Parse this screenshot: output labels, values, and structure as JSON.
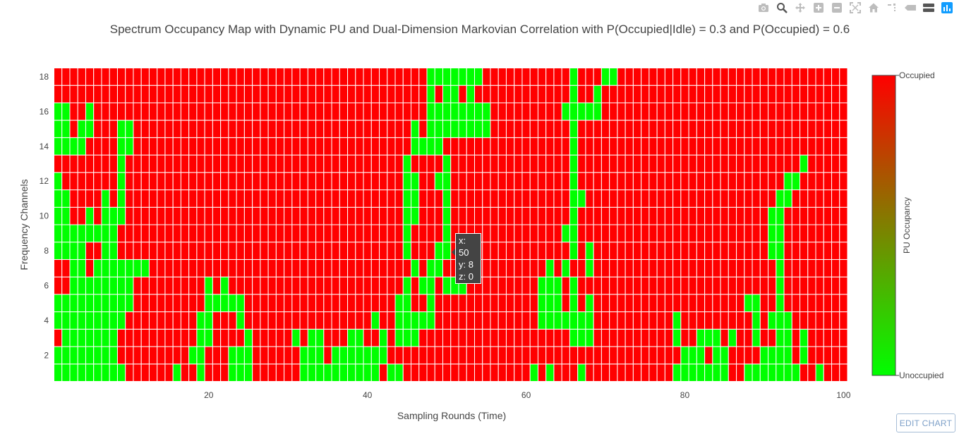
{
  "modebar": {
    "icons": [
      "camera-icon",
      "zoom-icon",
      "pan-icon",
      "zoom-in-icon",
      "zoom-out-icon",
      "autoscale-icon",
      "home-icon",
      "spike-lines-icon",
      "hover-closest-icon",
      "hover-compare-icon",
      "plotly-logo-icon"
    ]
  },
  "edit_chart_label": "EDIT CHART",
  "tooltip": {
    "x_line": "x: 50",
    "y_line": "y: 8",
    "z_line": "z: 0"
  },
  "colors": {
    "occupied": "#ff0000",
    "unoccupied": "#00ff00",
    "grid": "#ffffff",
    "text": "#444444"
  },
  "chart_data": {
    "type": "heatmap",
    "title": "Spectrum Occupancy Map with Dynamic PU and Dual-Dimension Markovian Correlation with P(Occupied|Idle) = 0.3 and P(Occupied) = 0.6",
    "xlabel": "Sampling Rounds (Time)",
    "ylabel": "Frequency Channels",
    "xlim": [
      1,
      100
    ],
    "ylim": [
      1,
      18
    ],
    "x_ticks": [
      20,
      40,
      60,
      80,
      100
    ],
    "y_ticks": [
      2,
      4,
      6,
      8,
      10,
      12,
      14,
      16,
      18
    ],
    "colorbar": {
      "title": "PU Occupancy",
      "max_label": "Occupied",
      "min_label": "Unoccupied"
    },
    "legend": "colorbar-right",
    "z_encoding": "1 = occupied (red), 0 = unoccupied (green)",
    "idle_runs_by_channel": {
      "1": [
        [
          1,
          9
        ],
        [
          16,
          16
        ],
        [
          19,
          19
        ],
        [
          23,
          25
        ],
        [
          32,
          41
        ],
        [
          43,
          44
        ],
        [
          61,
          61
        ],
        [
          63,
          63
        ],
        [
          67,
          67
        ],
        [
          79,
          85
        ],
        [
          88,
          94
        ],
        [
          97,
          97
        ]
      ],
      "2": [
        [
          1,
          8
        ],
        [
          18,
          19
        ],
        [
          23,
          25
        ],
        [
          32,
          34
        ],
        [
          36,
          42
        ],
        [
          80,
          82
        ],
        [
          84,
          85
        ],
        [
          90,
          93
        ],
        [
          95,
          95
        ]
      ],
      "3": [
        [
          2,
          8
        ],
        [
          19,
          20
        ],
        [
          25,
          25
        ],
        [
          31,
          31
        ],
        [
          33,
          34
        ],
        [
          38,
          39
        ],
        [
          42,
          42
        ],
        [
          44,
          46
        ],
        [
          66,
          68
        ],
        [
          79,
          79
        ],
        [
          82,
          84
        ],
        [
          86,
          86
        ],
        [
          89,
          89
        ],
        [
          92,
          93
        ],
        [
          95,
          95
        ]
      ],
      "4": [
        [
          1,
          9
        ],
        [
          19,
          20
        ],
        [
          24,
          24
        ],
        [
          41,
          41
        ],
        [
          44,
          48
        ],
        [
          62,
          68
        ],
        [
          79,
          79
        ],
        [
          89,
          89
        ],
        [
          91,
          93
        ]
      ],
      "5": [
        [
          1,
          10
        ],
        [
          20,
          24
        ],
        [
          44,
          45
        ],
        [
          48,
          48
        ],
        [
          62,
          64
        ],
        [
          66,
          66
        ],
        [
          68,
          68
        ],
        [
          88,
          89
        ],
        [
          92,
          92
        ]
      ],
      "6": [
        [
          3,
          10
        ],
        [
          20,
          20
        ],
        [
          22,
          22
        ],
        [
          45,
          45
        ],
        [
          47,
          48
        ],
        [
          50,
          52
        ],
        [
          62,
          64
        ],
        [
          66,
          66
        ],
        [
          92,
          92
        ]
      ],
      "7": [
        [
          3,
          4
        ],
        [
          6,
          12
        ],
        [
          46,
          46
        ],
        [
          48,
          49
        ],
        [
          52,
          52
        ],
        [
          63,
          63
        ],
        [
          65,
          65
        ],
        [
          68,
          68
        ],
        [
          92,
          92
        ]
      ],
      "8": [
        [
          1,
          4
        ],
        [
          7,
          8
        ],
        [
          45,
          45
        ],
        [
          49,
          50
        ],
        [
          66,
          66
        ],
        [
          68,
          68
        ],
        [
          91,
          92
        ]
      ],
      "9": [
        [
          1,
          8
        ],
        [
          45,
          45
        ],
        [
          50,
          50
        ],
        [
          65,
          66
        ],
        [
          91,
          92
        ]
      ],
      "10": [
        [
          1,
          2
        ],
        [
          5,
          5
        ],
        [
          7,
          9
        ],
        [
          45,
          46
        ],
        [
          50,
          50
        ],
        [
          66,
          66
        ],
        [
          91,
          92
        ]
      ],
      "11": [
        [
          1,
          2
        ],
        [
          7,
          7
        ],
        [
          9,
          9
        ],
        [
          45,
          46
        ],
        [
          50,
          50
        ],
        [
          66,
          67
        ],
        [
          92,
          93
        ]
      ],
      "12": [
        [
          1,
          1
        ],
        [
          9,
          9
        ],
        [
          45,
          46
        ],
        [
          49,
          50
        ],
        [
          66,
          66
        ],
        [
          93,
          94
        ]
      ],
      "13": [
        [
          9,
          9
        ],
        [
          45,
          45
        ],
        [
          50,
          50
        ],
        [
          66,
          66
        ],
        [
          95,
          95
        ]
      ],
      "14": [
        [
          1,
          4
        ],
        [
          9,
          10
        ],
        [
          46,
          49
        ],
        [
          66,
          66
        ]
      ],
      "15": [
        [
          1,
          2
        ],
        [
          4,
          5
        ],
        [
          9,
          10
        ],
        [
          46,
          46
        ],
        [
          48,
          55
        ],
        [
          66,
          66
        ]
      ],
      "16": [
        [
          1,
          2
        ],
        [
          5,
          5
        ],
        [
          48,
          55
        ],
        [
          65,
          69
        ]
      ],
      "17": [
        [
          48,
          48
        ],
        [
          50,
          51
        ],
        [
          53,
          53
        ],
        [
          66,
          66
        ],
        [
          69,
          69
        ]
      ],
      "18": [
        [
          48,
          54
        ],
        [
          66,
          66
        ],
        [
          70,
          71
        ]
      ]
    }
  }
}
